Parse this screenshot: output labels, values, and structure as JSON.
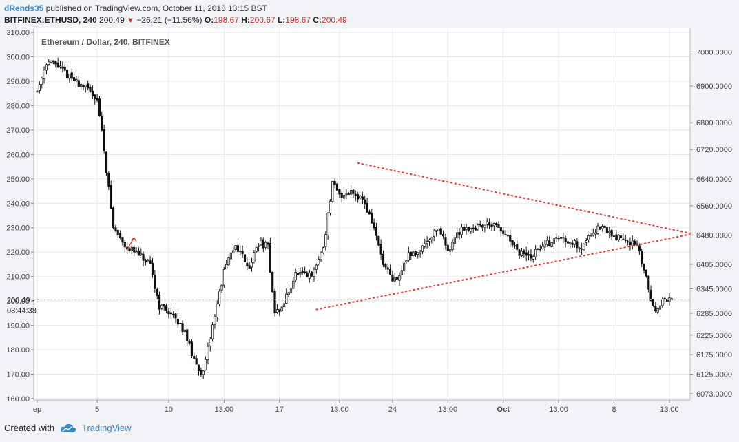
{
  "header": {
    "author": "dRends35",
    "published_text": "published on TradingView.com, October 11, 2018 13:15 BST"
  },
  "ohlc_bar": {
    "symbol": "BITFINEX:ETHUSD, 240",
    "last": "200.49",
    "change": "−26.21 (−11.56%)",
    "o_label": "O:",
    "o_value": "198.67",
    "h_label": "H:",
    "h_value": "200.67",
    "l_label": "L:",
    "l_value": "198.67",
    "c_label": "C:",
    "c_value": "200.49"
  },
  "footer": {
    "created_with": "Created with",
    "brand": "TradingView"
  },
  "colors": {
    "background": "#ffffff",
    "candle": "#111111",
    "trendline": "#e53935",
    "grid": "#e6e8ec",
    "accent": "#2e8ccf"
  },
  "chart_data": {
    "type": "candlestick",
    "title": "Ethereum / Dollar, 240, BITFINEX",
    "x_labels": [
      "ep",
      "5",
      "10",
      "13:00",
      "17",
      "13:00",
      "24",
      "13:00",
      "Oct",
      "13:00",
      "8",
      "13:00"
    ],
    "x_label_bars": [
      0,
      26,
      57,
      81,
      105,
      131,
      154,
      178,
      202,
      226,
      250,
      274
    ],
    "y_left": {
      "min": 160,
      "max": 310,
      "ticks": [
        "310.00",
        "300.00",
        "290.00",
        "280.00",
        "270.00",
        "260.00",
        "250.00",
        "240.00",
        "230.00",
        "220.00",
        "210.00",
        "200.00",
        "190.00",
        "180.00",
        "170.00",
        "160.00"
      ]
    },
    "y_right": {
      "ticks": [
        "7000.0000",
        "6900.0000",
        "6800.0000",
        "6720.0000",
        "6640.0000",
        "6560.0000",
        "6480.0000",
        "6405.0000",
        "6345.0000",
        "6285.0000",
        "6225.0000",
        "6175.0000",
        "6125.0000",
        "6073.0000"
      ],
      "tick_at_left_value": [
        302,
        288,
        273,
        262,
        250,
        239,
        227,
        215,
        205,
        195,
        186,
        178,
        170,
        162
      ]
    },
    "price_label": {
      "value": "200.49",
      "countdown": "03:44:38"
    },
    "series_anchors": {
      "bar": [
        0,
        4,
        8,
        15,
        20,
        26,
        29,
        33,
        38,
        42,
        45,
        49,
        53,
        57,
        60,
        64,
        68,
        72,
        76,
        81,
        86,
        92,
        96,
        100,
        103,
        106,
        112,
        119,
        124,
        128,
        131,
        136,
        141,
        146,
        150,
        154,
        157,
        160,
        165,
        170,
        174,
        178,
        184,
        190,
        196,
        202,
        208,
        214,
        218,
        222,
        226,
        230,
        236,
        240,
        244,
        248,
        251,
        256,
        260,
        264,
        266,
        268,
        270,
        272,
        274
      ],
      "price": [
        286,
        298,
        297,
        291,
        288,
        283,
        262,
        230,
        223,
        220,
        218,
        214,
        198,
        196,
        192,
        188,
        175,
        170,
        190,
        212,
        223,
        214,
        224,
        222,
        195,
        197,
        211,
        210,
        222,
        248,
        243,
        245,
        242,
        230,
        215,
        208,
        210,
        218,
        220,
        226,
        230,
        221,
        230,
        230,
        232,
        228,
        220,
        218,
        222,
        224,
        226,
        225,
        222,
        228,
        230,
        228,
        226,
        225,
        222,
        210,
        200,
        197,
        199,
        200,
        200.49
      ]
    },
    "annotations": [
      {
        "type": "trendline",
        "style": "dotted",
        "color": "#e53935",
        "label": "upper triangle line",
        "from": {
          "bar": 139,
          "price": 256.5
        },
        "to": {
          "bar": 284,
          "price": 227.5
        }
      },
      {
        "type": "trendline",
        "style": "dotted",
        "color": "#e53935",
        "label": "lower triangle line",
        "from": {
          "bar": 121,
          "price": 196.5
        },
        "to": {
          "bar": 284,
          "price": 227.5
        }
      },
      {
        "type": "arrow",
        "color": "#e53935",
        "label": "small red arrow",
        "from": {
          "bar": 39,
          "price": 221
        },
        "to": {
          "bar": 42,
          "price": 226
        }
      }
    ],
    "bar_count": 276
  }
}
